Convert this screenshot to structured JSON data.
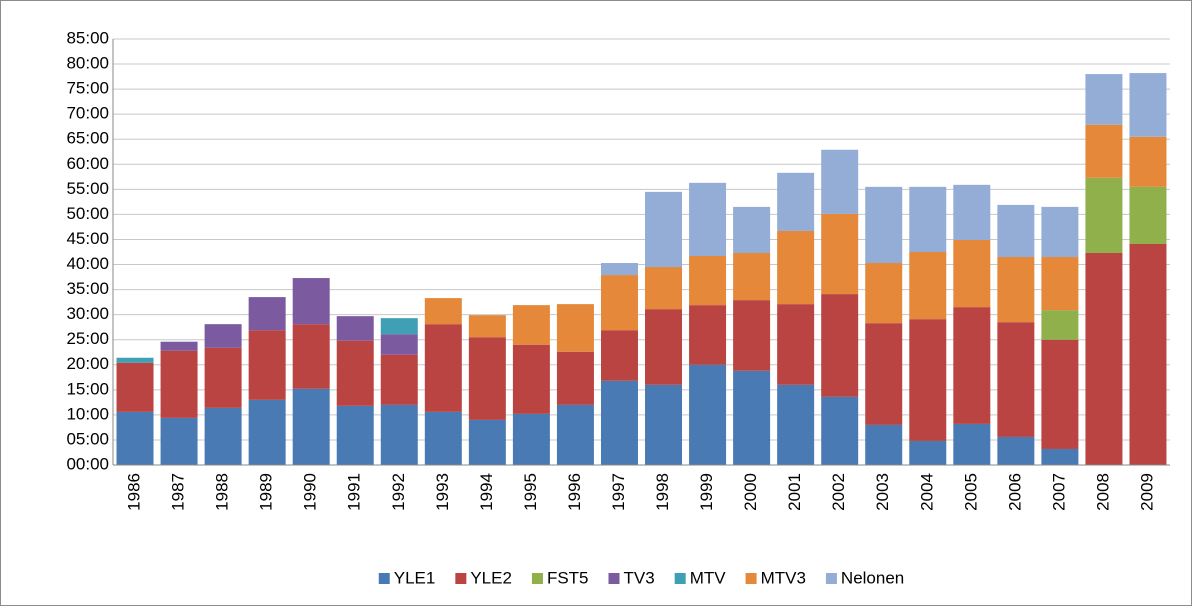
{
  "chart_data": {
    "type": "bar",
    "stacked": true,
    "categories": [
      "1986",
      "1987",
      "1988",
      "1989",
      "1990",
      "1991",
      "1992",
      "1993",
      "1994",
      "1995",
      "1996",
      "1997",
      "1998",
      "1999",
      "2000",
      "2001",
      "2002",
      "2003",
      "2004",
      "2005",
      "2006",
      "2007",
      "2008",
      "2009"
    ],
    "series": [
      {
        "name": "YLE1",
        "color": "#4a7ab4",
        "values": [
          10.6,
          9.4,
          11.4,
          13.0,
          15.2,
          11.8,
          12.0,
          10.6,
          9.0,
          10.2,
          12.0,
          16.8,
          16.0,
          20.0,
          18.8,
          16.0,
          13.6,
          8.0,
          4.8,
          8.2,
          5.6,
          3.2,
          0,
          0
        ]
      },
      {
        "name": "YLE2",
        "color": "#b94441",
        "values": [
          9.8,
          13.4,
          12.0,
          13.9,
          12.9,
          13.0,
          10.0,
          17.5,
          16.5,
          13.8,
          10.6,
          10.1,
          15.1,
          11.9,
          14.1,
          16.1,
          20.5,
          20.3,
          24.3,
          23.3,
          22.9,
          21.8,
          42.3,
          44.1
        ]
      },
      {
        "name": "FST5",
        "color": "#8fb04b",
        "values": [
          0,
          0,
          0,
          0,
          0,
          0,
          0,
          0,
          0,
          0,
          0,
          0,
          0,
          0,
          0,
          0,
          0,
          0,
          0,
          0,
          0,
          5.9,
          15.0,
          11.4
        ]
      },
      {
        "name": "TV3",
        "color": "#7b5a9f",
        "values": [
          0,
          1.8,
          4.7,
          6.6,
          9.2,
          4.9,
          4.1,
          0,
          0,
          0,
          0,
          0,
          0,
          0,
          0,
          0,
          0,
          0,
          0,
          0,
          0,
          0,
          0,
          0
        ]
      },
      {
        "name": "MTV",
        "color": "#3f9fb5",
        "values": [
          1.0,
          0,
          0,
          0,
          0,
          0,
          3.2,
          0,
          0,
          0,
          0,
          0,
          0,
          0,
          0,
          0,
          0,
          0,
          0,
          0,
          0,
          0,
          0,
          0
        ]
      },
      {
        "name": "MTV3",
        "color": "#e5883a",
        "values": [
          0,
          0,
          0,
          0,
          0,
          0,
          0,
          5.2,
          4.4,
          7.9,
          9.5,
          11.0,
          8.4,
          9.8,
          9.4,
          14.6,
          16.0,
          12.0,
          13.4,
          13.4,
          13.0,
          10.6,
          10.6,
          10.0
        ]
      },
      {
        "name": "Nelonen",
        "color": "#94add6",
        "values": [
          0,
          0,
          0,
          0,
          0,
          0,
          0,
          0,
          0,
          0,
          0,
          2.4,
          15.0,
          14.6,
          9.2,
          11.6,
          12.8,
          15.2,
          13.0,
          11.0,
          10.4,
          10.0,
          10.1,
          12.7
        ]
      }
    ],
    "ylim": [
      0,
      85
    ],
    "yticks": [
      {
        "value": 0,
        "label": "00:00"
      },
      {
        "value": 5,
        "label": "05:00"
      },
      {
        "value": 10,
        "label": "10:00"
      },
      {
        "value": 15,
        "label": "15:00"
      },
      {
        "value": 20,
        "label": "20:00"
      },
      {
        "value": 25,
        "label": "25:00"
      },
      {
        "value": 30,
        "label": "30:00"
      },
      {
        "value": 35,
        "label": "35:00"
      },
      {
        "value": 40,
        "label": "40:00"
      },
      {
        "value": 45,
        "label": "45:00"
      },
      {
        "value": 50,
        "label": "50:00"
      },
      {
        "value": 55,
        "label": "55:00"
      },
      {
        "value": 60,
        "label": "60:00"
      },
      {
        "value": 65,
        "label": "65:00"
      },
      {
        "value": 70,
        "label": "70:00"
      },
      {
        "value": 75,
        "label": "75:00"
      },
      {
        "value": 80,
        "label": "80:00"
      },
      {
        "value": 85,
        "label": "85:00"
      }
    ],
    "grid": true,
    "legend": "bottom"
  }
}
